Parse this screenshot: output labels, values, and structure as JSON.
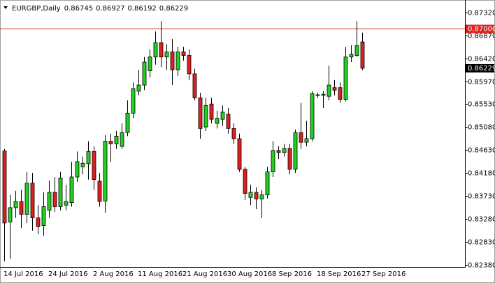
{
  "chart_data": {
    "type": "candlestick",
    "title": "EURGBP,Daily",
    "categories": [
      "14 Jul 2016",
      null,
      null,
      null,
      null,
      null,
      null,
      null,
      "24 Jul 2016",
      null,
      null,
      null,
      null,
      null,
      null,
      null,
      "2 Aug 2016",
      null,
      null,
      null,
      null,
      null,
      null,
      null,
      "11 Aug 2016",
      null,
      null,
      null,
      null,
      null,
      null,
      null,
      "21 Aug 2016",
      null,
      null,
      null,
      null,
      null,
      null,
      null,
      "30 Aug 2016",
      null,
      null,
      null,
      null,
      null,
      null,
      null,
      "8 Sep 2016",
      null,
      null,
      null,
      null,
      null,
      null,
      null,
      "18 Sep 2016",
      null,
      null,
      null,
      null,
      null,
      null,
      null,
      "27 Sep 2016"
    ],
    "open": [
      0.8461,
      0.8322,
      0.835,
      0.8362,
      0.8337,
      0.8398,
      0.833,
      0.8315,
      0.8345,
      0.838,
      0.8352,
      0.8355,
      0.836,
      0.841,
      0.843,
      0.8436,
      0.846,
      0.8402,
      0.8363,
      0.848,
      0.8475,
      0.847,
      0.8497,
      0.8535,
      0.8578,
      0.859,
      0.8618,
      0.8645,
      0.8673,
      0.8645,
      0.8655,
      0.862,
      0.8655,
      0.8648,
      0.8612,
      0.8565,
      0.8508,
      0.8553,
      0.8515,
      0.8523,
      0.8533,
      0.8505,
      0.8485,
      0.8425,
      0.837,
      0.838,
      0.8367,
      0.8375,
      0.842,
      0.8462,
      0.8458,
      0.8466,
      0.8425,
      0.8497,
      0.8478,
      0.8485,
      0.857,
      0.857,
      0.8568,
      0.8585,
      0.8585,
      0.8562,
      0.8645,
      0.8648,
      0.86745
    ],
    "high": [
      0.8465,
      0.8375,
      0.8383,
      0.8385,
      0.842,
      0.8418,
      0.8355,
      0.838,
      0.8403,
      0.841,
      0.842,
      0.8395,
      0.844,
      0.846,
      0.845,
      0.848,
      0.847,
      0.8418,
      0.8492,
      0.8495,
      0.85,
      0.8515,
      0.856,
      0.8595,
      0.862,
      0.8645,
      0.866,
      0.8695,
      0.8715,
      0.867,
      0.868,
      0.8665,
      0.8665,
      0.866,
      0.8622,
      0.8575,
      0.8565,
      0.8565,
      0.854,
      0.855,
      0.8545,
      0.8515,
      0.8495,
      0.843,
      0.8395,
      0.839,
      0.8385,
      0.843,
      0.848,
      0.847,
      0.8475,
      0.8475,
      0.8503,
      0.8555,
      0.852,
      0.8578,
      0.8575,
      0.8578,
      0.8628,
      0.86,
      0.8595,
      0.8665,
      0.8668,
      0.8715,
      0.86927
    ],
    "low": [
      0.8245,
      0.825,
      0.833,
      0.831,
      0.832,
      0.8305,
      0.8298,
      0.8295,
      0.833,
      0.8342,
      0.8345,
      0.8345,
      0.8352,
      0.84,
      0.8415,
      0.8405,
      0.8385,
      0.8352,
      0.834,
      0.844,
      0.8465,
      0.8465,
      0.849,
      0.8525,
      0.857,
      0.858,
      0.8605,
      0.863,
      0.8625,
      0.862,
      0.859,
      0.8608,
      0.8638,
      0.86,
      0.856,
      0.8485,
      0.85,
      0.8515,
      0.8505,
      0.851,
      0.8495,
      0.8475,
      0.842,
      0.8365,
      0.8355,
      0.8347,
      0.833,
      0.8368,
      0.841,
      0.8445,
      0.845,
      0.8415,
      0.8418,
      0.8465,
      0.847,
      0.848,
      0.8565,
      0.8545,
      0.856,
      0.857,
      0.8555,
      0.8558,
      0.8635,
      0.8645,
      0.86192
    ],
    "close": [
      0.832,
      0.835,
      0.8362,
      0.8337,
      0.8398,
      0.833,
      0.8313,
      0.8352,
      0.838,
      0.8352,
      0.8408,
      0.8362,
      0.841,
      0.844,
      0.8437,
      0.846,
      0.8405,
      0.8362,
      0.848,
      0.8475,
      0.849,
      0.8497,
      0.8535,
      0.8583,
      0.859,
      0.8635,
      0.8645,
      0.8673,
      0.8645,
      0.8655,
      0.862,
      0.8655,
      0.8648,
      0.8612,
      0.8565,
      0.8505,
      0.855,
      0.8523,
      0.8525,
      0.8537,
      0.8505,
      0.8485,
      0.8425,
      0.8378,
      0.838,
      0.8367,
      0.8375,
      0.842,
      0.8462,
      0.8458,
      0.8466,
      0.8425,
      0.8497,
      0.8478,
      0.8485,
      0.8573,
      0.8571,
      0.8572,
      0.859,
      0.858,
      0.8562,
      0.8645,
      0.865,
      0.8667,
      0.86229
    ],
    "up_color": "#22d022",
    "down_color": "#e0201e",
    "ylim": [
      0.82339,
      0.87511
    ],
    "yticks": [
      {
        "value": 0.8732,
        "label": "0.87320"
      },
      {
        "value": 0.8687,
        "label": "0.86870"
      },
      {
        "value": 0.8642,
        "label": "0.86420"
      },
      {
        "value": 0.8597,
        "label": "0.85970"
      },
      {
        "value": 0.8553,
        "label": "0.85530"
      },
      {
        "value": 0.8508,
        "label": "0.85080"
      },
      {
        "value": 0.8463,
        "label": "0.84630"
      },
      {
        "value": 0.8418,
        "label": "0.84180"
      },
      {
        "value": 0.8373,
        "label": "0.83730"
      },
      {
        "value": 0.8328,
        "label": "0.83280"
      },
      {
        "value": 0.8283,
        "label": "0.82830"
      },
      {
        "value": 0.8238,
        "label": "0.82380"
      }
    ],
    "hline": {
      "value": 0.87,
      "label": "0.87000",
      "color": "#e0201e"
    }
  }
}
